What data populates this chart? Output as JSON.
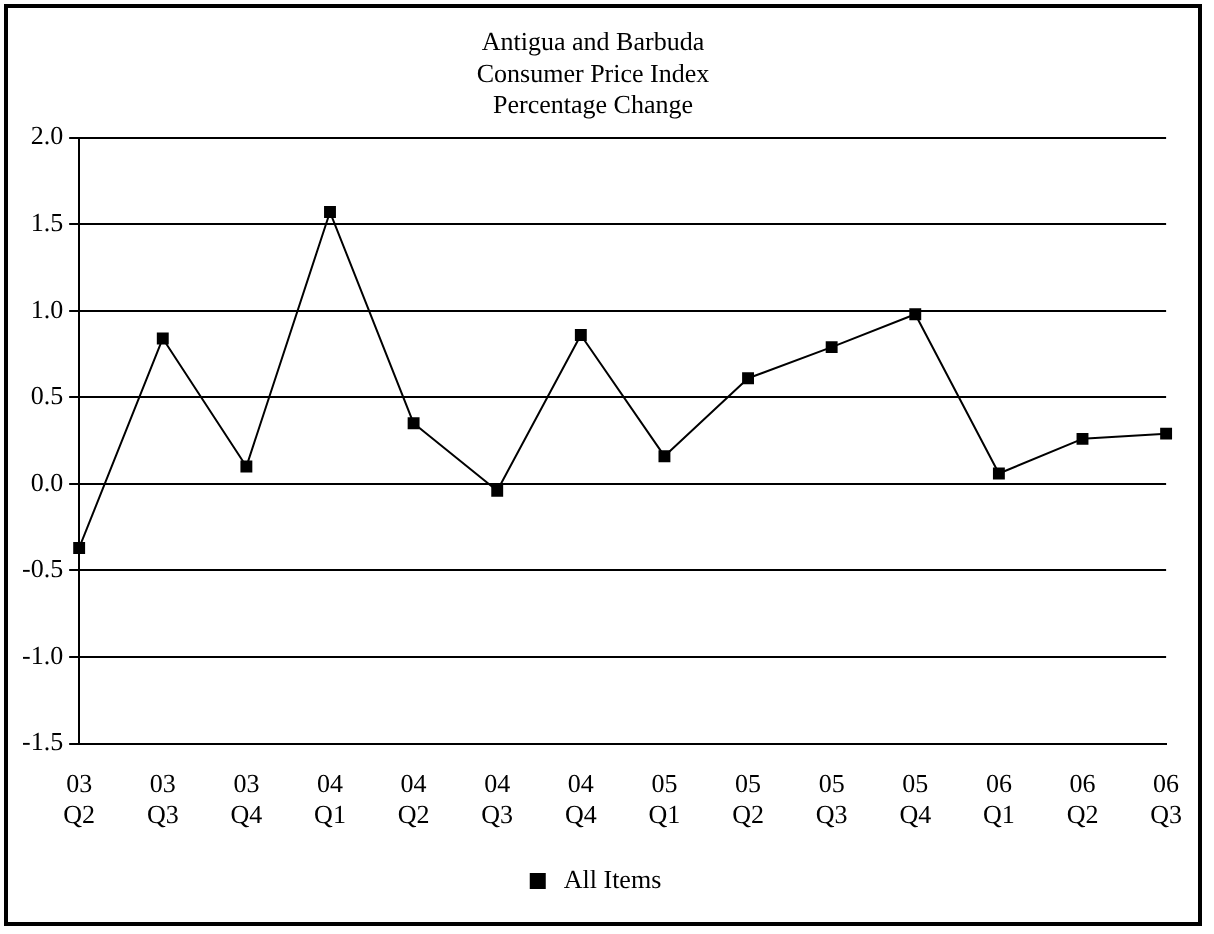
{
  "chart_data": {
    "type": "line",
    "title": "Antigua and Barbuda\nConsumer Price Index\nPercentage Change",
    "categories": [
      "03 Q2",
      "03 Q3",
      "03 Q4",
      "04 Q1",
      "04 Q2",
      "04 Q3",
      "04 Q4",
      "05 Q1",
      "05 Q2",
      "05 Q3",
      "05 Q4",
      "06 Q1",
      "06 Q2",
      "06 Q3"
    ],
    "series": [
      {
        "name": "All Items",
        "color": "#000000",
        "values": [
          -0.37,
          0.84,
          0.1,
          1.57,
          0.35,
          -0.04,
          0.86,
          0.16,
          0.61,
          0.79,
          0.98,
          0.06,
          0.26,
          0.29
        ]
      }
    ],
    "ylim": [
      -1.5,
      2.0
    ],
    "yticks": [
      {
        "value": -1.5,
        "label": "-1.5"
      },
      {
        "value": -1,
        "label": "-1.0"
      },
      {
        "value": -0.5,
        "label": "-0.5"
      },
      {
        "value": 0,
        "label": "0.0"
      },
      {
        "value": 0.5,
        "label": "0.5"
      },
      {
        "value": 1,
        "label": "1.0"
      },
      {
        "value": 1.5,
        "label": "1.5"
      },
      {
        "value": 2,
        "label": "2.0"
      }
    ],
    "grid": "y",
    "legend": "bottom",
    "marker": "square",
    "line_style": "solid"
  }
}
